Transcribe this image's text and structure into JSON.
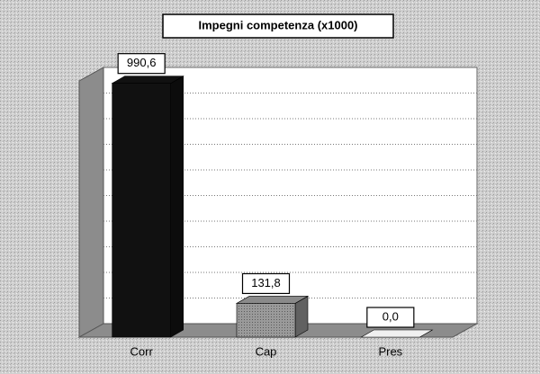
{
  "chart_data": {
    "type": "bar3d",
    "title": "Impegni competenza (x1000)",
    "categories": [
      "Corr",
      "Cap",
      "Pres"
    ],
    "values": [
      990.6,
      131.8,
      0.0
    ],
    "value_labels": [
      "990,6",
      "131,8",
      "0,0"
    ],
    "colors": [
      "#111111",
      "#8a8a8a",
      "#f0f0f0"
    ],
    "ylim": [
      0,
      1000
    ],
    "yticks": [
      0,
      100,
      200,
      300,
      400,
      500,
      600,
      700,
      800,
      900,
      1000
    ],
    "grid": true
  }
}
